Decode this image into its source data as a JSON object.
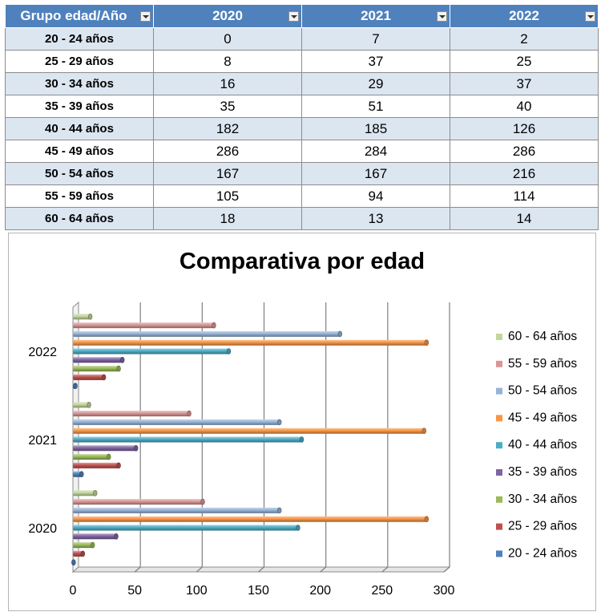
{
  "table": {
    "header": [
      "Grupo edad/Año",
      "2020",
      "2021",
      "2022"
    ],
    "rows": [
      {
        "group": "20 - 24 años",
        "values": [
          "0",
          "7",
          "2"
        ]
      },
      {
        "group": "25 - 29 años",
        "values": [
          "8",
          "37",
          "25"
        ]
      },
      {
        "group": "30 - 34 años",
        "values": [
          "16",
          "29",
          "37"
        ]
      },
      {
        "group": "35 - 39 años",
        "values": [
          "35",
          "51",
          "40"
        ]
      },
      {
        "group": "40 - 44 años",
        "values": [
          "182",
          "185",
          "126"
        ]
      },
      {
        "group": "45 - 49 años",
        "values": [
          "286",
          "284",
          "286"
        ]
      },
      {
        "group": "50 - 54 años",
        "values": [
          "167",
          "167",
          "216"
        ]
      },
      {
        "group": "55 - 59 años",
        "values": [
          "105",
          "94",
          "114"
        ]
      },
      {
        "group": "60 - 64 años",
        "values": [
          "18",
          "13",
          "14"
        ]
      }
    ]
  },
  "chart_data": {
    "type": "bar",
    "orientation": "horizontal",
    "style": "3d-cylinder",
    "title": "Comparativa por edad",
    "categories": [
      "2020",
      "2021",
      "2022"
    ],
    "series": [
      {
        "name": "20 - 24 años",
        "color": "#4f81bd",
        "values": [
          0,
          7,
          2
        ]
      },
      {
        "name": "25 - 29 años",
        "color": "#c0504d",
        "values": [
          8,
          37,
          25
        ]
      },
      {
        "name": "30 - 34 años",
        "color": "#9bbb59",
        "values": [
          16,
          29,
          37
        ]
      },
      {
        "name": "35 - 39 años",
        "color": "#8064a2",
        "values": [
          35,
          51,
          40
        ]
      },
      {
        "name": "40 - 44 años",
        "color": "#4bacc6",
        "values": [
          182,
          185,
          126
        ]
      },
      {
        "name": "45 - 49 años",
        "color": "#f79646",
        "values": [
          286,
          284,
          286
        ]
      },
      {
        "name": "50 - 54 años",
        "color": "#95b3d7",
        "values": [
          167,
          167,
          216
        ]
      },
      {
        "name": "55 - 59 años",
        "color": "#d99694",
        "values": [
          105,
          94,
          114
        ]
      },
      {
        "name": "60 - 64 años",
        "color": "#c3d69b",
        "values": [
          18,
          13,
          14
        ]
      }
    ],
    "xlim": [
      0,
      300
    ],
    "xticks": [
      "0",
      "50",
      "100",
      "150",
      "200",
      "250",
      "300"
    ],
    "grid": true,
    "legend": "right"
  }
}
